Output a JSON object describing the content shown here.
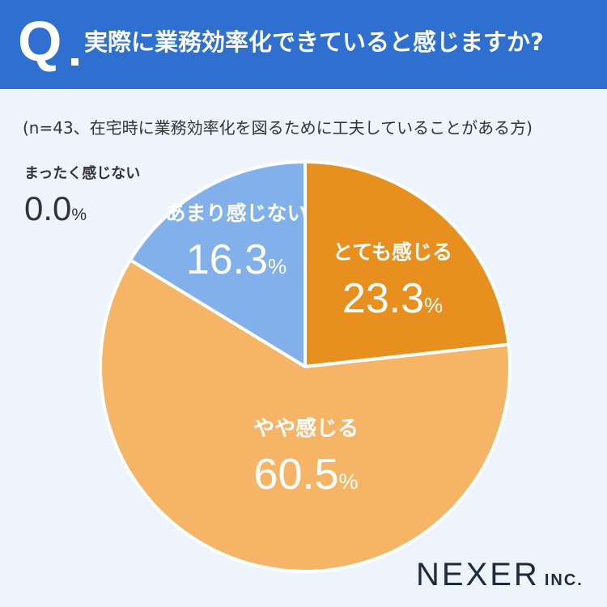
{
  "header": {
    "q_mark": "Q",
    "question": "実際に業務効率化できていると感じますか?"
  },
  "note": "(n=43、在宅時に業務効率化を図るために工夫していることがある方)",
  "brand": {
    "name": "NEXER",
    "suffix": "INC."
  },
  "colors": {
    "header": "#2f6fd0",
    "background": "#eef4fb",
    "slice_strong": "#e8901f",
    "slice_some": "#f6b566",
    "slice_little": "#82b0ea",
    "outside_label": "#333333"
  },
  "chart_data": {
    "type": "pie",
    "start_angle": "12 o'clock, clockwise",
    "unit": "%",
    "slices": [
      {
        "label": "とても感じる",
        "value": 23.3,
        "value_text": "23.3",
        "color": "#e8901f"
      },
      {
        "label": "やや感じる",
        "value": 60.5,
        "value_text": "60.5",
        "color": "#f6b566"
      },
      {
        "label": "あまり感じない",
        "value": 16.3,
        "value_text": "16.3",
        "color": "#82b0ea"
      },
      {
        "label": "まったく感じない",
        "value": 0.0,
        "value_text": "0.0",
        "color": "#aaaaaa"
      }
    ]
  }
}
